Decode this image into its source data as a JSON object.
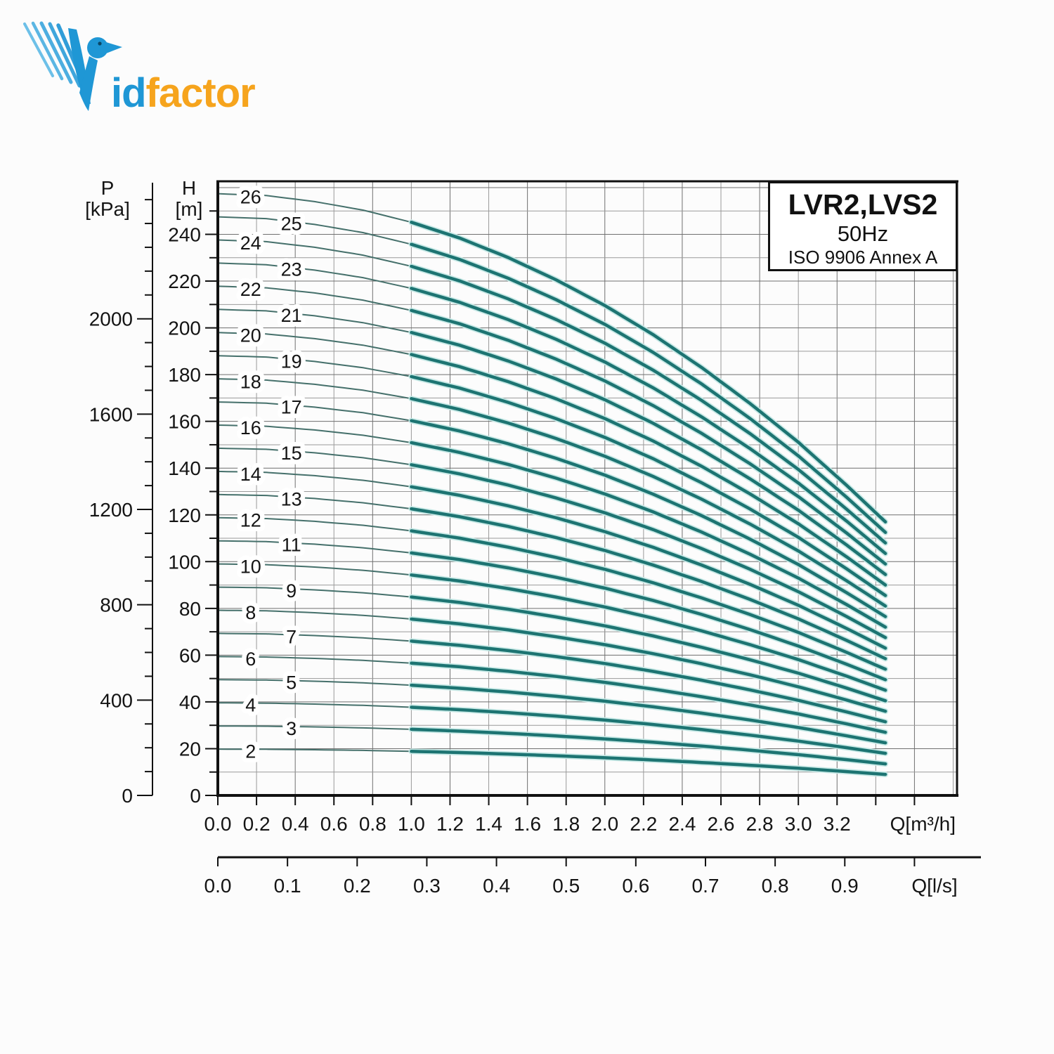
{
  "logo": {
    "name": "VidFactor",
    "id_part": "id",
    "factor_part": "factor",
    "blue": "#1f97d5",
    "orange": "#f6a41d"
  },
  "title_box": {
    "model": "LVR2,LVS2",
    "frequency": "50Hz",
    "standard": "ISO 9906 Annex A"
  },
  "chart_data": {
    "type": "line",
    "title": "LVR2,LVS2 50Hz pump performance curves (head vs flow, stages 2-26)",
    "x_axis": {
      "label": "Q[m³/h]",
      "tick_labels": [
        "0.0",
        "0.2",
        "0.4",
        "0.6",
        "0.8",
        "1.0",
        "1.2",
        "1.4",
        "1.6",
        "1.8",
        "2.0",
        "2.2",
        "2.4",
        "2.6",
        "2.8",
        "3.0",
        "3.2"
      ],
      "tick_step": 0.2,
      "unlabeled_ticks": [
        3.4,
        3.6
      ],
      "range": [
        0,
        3.82
      ],
      "grid": true
    },
    "x_axis_secondary": {
      "label": "Q[l/s]",
      "tick_labels": [
        "0.0",
        "0.1",
        "0.2",
        "0.3",
        "0.4",
        "0.5",
        "0.6",
        "0.7",
        "0.8",
        "0.9"
      ],
      "tick_step": 0.1,
      "unlabeled_ticks": [
        1.0
      ],
      "m3h_per_ls": 3.6
    },
    "y_axis_head": {
      "label_line1": "H",
      "label_line2": "[m]",
      "tick_labels": [
        "0",
        "20",
        "40",
        "60",
        "80",
        "100",
        "120",
        "140",
        "160",
        "180",
        "200",
        "220",
        "240"
      ],
      "tick_step_major": 20,
      "tick_step_minor": 10,
      "minor_max": 250,
      "range": [
        0,
        262.7
      ],
      "grid": true
    },
    "y_axis_pressure": {
      "label_line1": "P",
      "label_line2": "[kPa]",
      "tick_labels": [
        "0",
        "400",
        "800",
        "1200",
        "1600",
        "2000"
      ],
      "tick_step_major": 400,
      "tick_step_minor": 100,
      "minor_max": 2500,
      "range": [
        0,
        2577
      ]
    },
    "stages": [
      2,
      3,
      4,
      5,
      6,
      7,
      8,
      9,
      10,
      11,
      12,
      13,
      14,
      15,
      16,
      17,
      18,
      19,
      20,
      21,
      22,
      23,
      24,
      25,
      26
    ],
    "q_points": [
      0,
      0.25,
      0.5,
      0.75,
      1.0,
      1.25,
      1.5,
      1.75,
      2.0,
      2.25,
      2.5,
      2.75,
      3.0,
      3.25,
      3.45
    ],
    "single_stage_head_m": [
      9.9,
      9.87,
      9.77,
      9.63,
      9.43,
      9.17,
      8.85,
      8.48,
      8.06,
      7.58,
      7.04,
      6.45,
      5.81,
      5.1,
      4.5
    ],
    "q_end": 3.45,
    "q_thick_start": 1.0,
    "label_q_even": 0.17,
    "label_q_odd": 0.38,
    "curve_color": "#1d7472",
    "curve_thin_color": "#45706b",
    "curve_halo_color": "#c6e8e5",
    "grid_minor_color": "#9a9a9a",
    "grid_major_color": "#6f6f6f",
    "axis_color": "#111111"
  }
}
